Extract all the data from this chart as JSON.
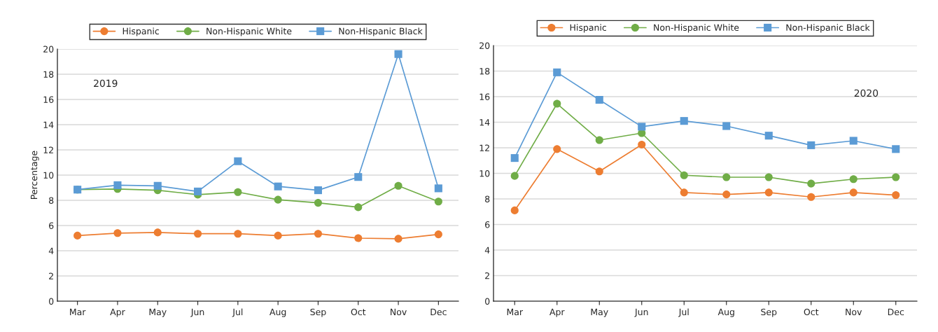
{
  "chart_data": [
    {
      "type": "line",
      "ylabel": "Percentage",
      "annotations": [
        "2019"
      ],
      "categories": [
        "Mar",
        "Apr",
        "May",
        "Jun",
        "Jul",
        "Aug",
        "Sep",
        "Oct",
        "Nov",
        "Dec"
      ],
      "series": [
        {
          "name": "Hispanic",
          "color": "#ed7d31",
          "marker": "circle",
          "values": [
            5.2,
            5.4,
            5.45,
            5.35,
            5.35,
            5.2,
            5.35,
            5.0,
            4.95,
            5.3
          ]
        },
        {
          "name": "Non-Hispanic White",
          "color": "#70ad47",
          "marker": "circle",
          "values": [
            8.85,
            8.9,
            8.8,
            8.45,
            8.65,
            8.05,
            7.8,
            7.45,
            9.15,
            7.9
          ]
        },
        {
          "name": "Non-Hispanic Black",
          "color": "#5b9bd5",
          "marker": "square",
          "values": [
            8.85,
            9.2,
            9.15,
            8.7,
            11.1,
            9.1,
            8.8,
            9.85,
            19.6,
            8.95
          ]
        }
      ],
      "ylim": [
        0,
        20
      ],
      "yticks": [
        0,
        2,
        4,
        6,
        8,
        10,
        12,
        14,
        16,
        18,
        20
      ],
      "grid": "y",
      "legend": "top"
    },
    {
      "type": "line",
      "annotations": [
        "2020"
      ],
      "categories": [
        "Mar",
        "Apr",
        "May",
        "Jun",
        "Jul",
        "Aug",
        "Sep",
        "Oct",
        "Nov",
        "Dec"
      ],
      "series": [
        {
          "name": "Hispanic",
          "color": "#ed7d31",
          "marker": "circle",
          "values": [
            7.1,
            11.9,
            10.15,
            12.25,
            8.5,
            8.35,
            8.5,
            8.15,
            8.5,
            8.3
          ]
        },
        {
          "name": "Non-Hispanic White",
          "color": "#70ad47",
          "marker": "circle",
          "values": [
            9.8,
            15.45,
            12.6,
            13.15,
            9.85,
            9.7,
            9.7,
            9.2,
            9.55,
            9.7
          ]
        },
        {
          "name": "Non-Hispanic Black",
          "color": "#5b9bd5",
          "marker": "square",
          "values": [
            11.2,
            17.9,
            15.75,
            13.65,
            14.1,
            13.7,
            12.95,
            12.2,
            12.55,
            11.9
          ]
        }
      ],
      "ylim": [
        0,
        20
      ],
      "yticks": [
        0,
        2,
        4,
        6,
        8,
        10,
        12,
        14,
        16,
        18,
        20
      ],
      "grid": "y",
      "legend": "top"
    }
  ]
}
